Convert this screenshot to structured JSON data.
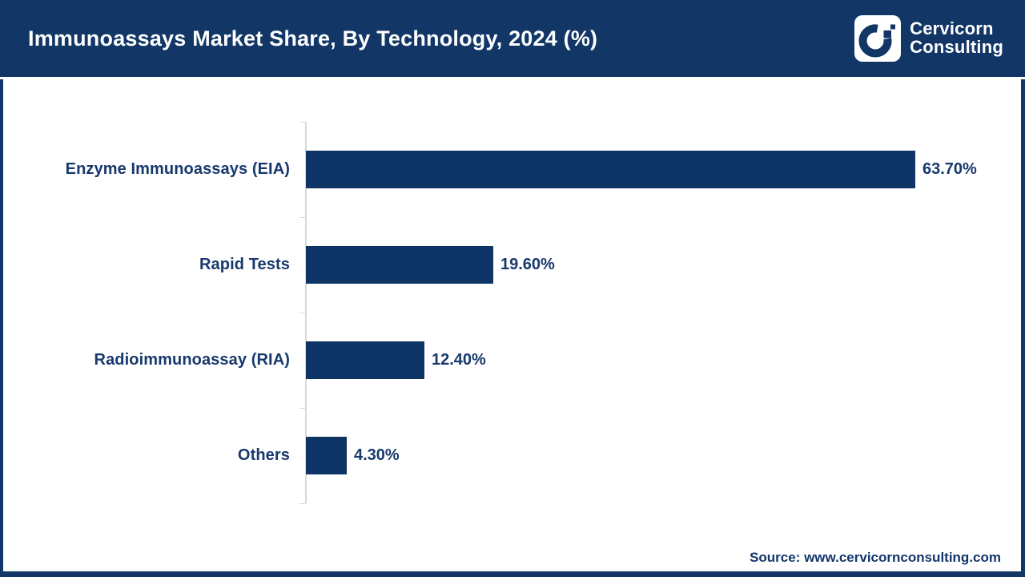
{
  "header": {
    "title": "Immunoassays Market Share, By Technology, 2024 (%)",
    "logo": {
      "icon": "cervicorn-c-mark",
      "brand_line1": "Cervicorn",
      "brand_line2": "Consulting"
    }
  },
  "source": {
    "label": "Source: www.cervicornconsulting.com"
  },
  "colors": {
    "navy_header": "#123666",
    "navy_bar": "#0d3465",
    "navy_text": "#17396d",
    "axis_gray": "#d9d9d9",
    "background": "#ffffff"
  },
  "chart_data": {
    "type": "bar",
    "orientation": "horizontal",
    "title": "Immunoassays Market Share, By Technology, 2024 (%)",
    "categories": [
      "Enzyme Immunoassays (EIA)",
      "Rapid Tests",
      "Radioimmunoassay (RIA)",
      "Others"
    ],
    "values": [
      63.7,
      19.6,
      12.4,
      4.3
    ],
    "value_labels": [
      "63.70%",
      "19.60%",
      "12.40%",
      "4.30%"
    ],
    "unit": "%",
    "xlim": [
      0,
      75
    ],
    "grid": false,
    "legend": false,
    "bar_color": "#0d3465"
  }
}
